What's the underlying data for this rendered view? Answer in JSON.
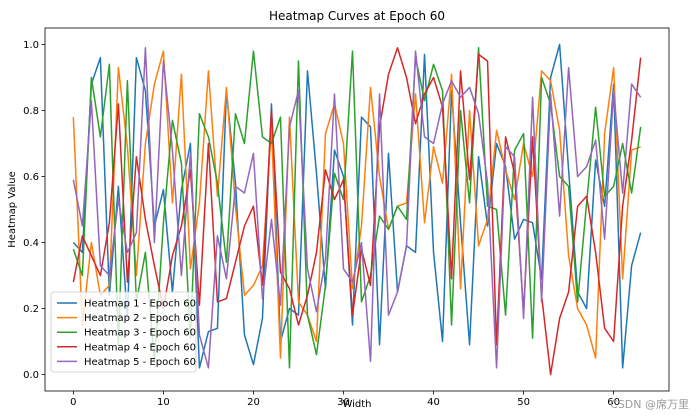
{
  "chart_data": {
    "type": "line",
    "title": "Heatmap Curves at Epoch 60",
    "xlabel": "Width",
    "ylabel": "Heatmap Value",
    "xlim": [
      -3.15,
      66.15
    ],
    "ylim": [
      -0.05,
      1.05
    ],
    "x_ticks": [
      0,
      10,
      20,
      30,
      40,
      50,
      60
    ],
    "y_ticks": [
      0.0,
      0.2,
      0.4,
      0.6,
      0.8,
      1.0
    ],
    "x_tick_labels": [
      "0",
      "10",
      "20",
      "30",
      "40",
      "50",
      "60"
    ],
    "y_tick_labels": [
      "0.0",
      "0.2",
      "0.4",
      "0.6",
      "0.8",
      "1.0"
    ],
    "grid": false,
    "legend_position": "lower-left",
    "x": [
      0,
      1,
      2,
      3,
      4,
      5,
      6,
      7,
      8,
      9,
      10,
      11,
      12,
      13,
      14,
      15,
      16,
      17,
      18,
      19,
      20,
      21,
      22,
      23,
      24,
      25,
      26,
      27,
      28,
      29,
      30,
      31,
      32,
      33,
      34,
      35,
      36,
      37,
      38,
      39,
      40,
      41,
      42,
      43,
      44,
      45,
      46,
      47,
      48,
      49,
      50,
      51,
      52,
      53,
      54,
      55,
      56,
      57,
      58,
      59,
      60,
      61,
      62,
      63
    ],
    "series": [
      {
        "name": "Heatmap 1 - Epoch 60",
        "color": "#1f77b4",
        "values": [
          0.4,
          0.37,
          0.88,
          0.96,
          0.24,
          0.57,
          0.17,
          0.96,
          0.86,
          0.45,
          0.56,
          0.25,
          0.56,
          0.7,
          0.02,
          0.13,
          0.14,
          0.86,
          0.58,
          0.12,
          0.03,
          0.17,
          0.82,
          0.1,
          0.2,
          0.18,
          0.92,
          0.61,
          0.26,
          0.68,
          0.6,
          0.15,
          0.78,
          0.75,
          0.09,
          0.67,
          0.25,
          0.39,
          0.37,
          0.97,
          0.37,
          0.1,
          0.86,
          0.46,
          0.09,
          0.66,
          0.45,
          0.7,
          0.63,
          0.41,
          0.47,
          0.46,
          0.29,
          0.9,
          1.0,
          0.62,
          0.25,
          0.2,
          0.65,
          0.51,
          0.88,
          0.02,
          0.33,
          0.43
        ]
      },
      {
        "name": "Heatmap 2 - Epoch 60",
        "color": "#ff7f0e",
        "values": [
          0.78,
          0.15,
          0.4,
          0.24,
          0.27,
          0.93,
          0.69,
          0.3,
          0.7,
          0.88,
          0.98,
          0.52,
          0.91,
          0.32,
          0.52,
          0.92,
          0.54,
          0.87,
          0.51,
          0.24,
          0.27,
          0.33,
          0.75,
          0.05,
          0.78,
          0.22,
          0.18,
          0.1,
          0.73,
          0.82,
          0.7,
          0.26,
          0.45,
          0.87,
          0.6,
          0.44,
          0.51,
          0.52,
          0.85,
          0.46,
          0.69,
          0.58,
          0.91,
          0.26,
          0.8,
          0.39,
          0.47,
          0.74,
          0.62,
          0.53,
          0.7,
          0.6,
          0.92,
          0.89,
          0.74,
          0.36,
          0.2,
          0.15,
          0.05,
          0.73,
          0.93,
          0.29,
          0.68,
          0.69
        ]
      },
      {
        "name": "Heatmap 3 - Epoch 60",
        "color": "#2ca02c",
        "values": [
          0.38,
          0.3,
          0.9,
          0.72,
          0.94,
          0.09,
          0.89,
          0.22,
          0.37,
          0.04,
          0.46,
          0.77,
          0.64,
          0.11,
          0.79,
          0.72,
          0.58,
          0.34,
          0.79,
          0.7,
          0.98,
          0.72,
          0.7,
          0.78,
          0.02,
          0.95,
          0.18,
          0.06,
          0.27,
          0.61,
          0.53,
          0.98,
          0.22,
          0.3,
          0.48,
          0.44,
          0.51,
          0.47,
          0.96,
          0.83,
          0.94,
          0.86,
          0.15,
          0.8,
          0.52,
          0.99,
          0.51,
          0.5,
          0.18,
          0.68,
          0.73,
          0.11,
          0.9,
          0.82,
          0.6,
          0.57,
          0.22,
          0.52,
          0.81,
          0.54,
          0.57,
          0.7,
          0.55,
          0.75
        ]
      },
      {
        "name": "Heatmap 4 - Epoch 60",
        "color": "#d62728",
        "values": [
          0.28,
          0.42,
          0.36,
          0.3,
          0.46,
          0.82,
          0.28,
          0.66,
          0.47,
          0.33,
          0.2,
          0.36,
          0.45,
          0.62,
          0.21,
          0.7,
          0.22,
          0.23,
          0.34,
          0.45,
          0.51,
          0.27,
          0.8,
          0.31,
          0.26,
          0.15,
          0.24,
          0.37,
          0.62,
          0.53,
          0.59,
          0.18,
          0.38,
          0.27,
          0.75,
          0.91,
          0.99,
          0.9,
          0.76,
          0.85,
          0.9,
          0.81,
          0.29,
          0.92,
          0.59,
          0.97,
          0.95,
          0.09,
          0.72,
          0.61,
          0.19,
          0.72,
          0.24,
          0.0,
          0.17,
          0.25,
          0.51,
          0.54,
          0.37,
          0.14,
          0.1,
          0.51,
          0.71,
          0.96
        ]
      },
      {
        "name": "Heatmap 5 - Epoch 60",
        "color": "#9467bd",
        "values": [
          0.59,
          0.45,
          0.83,
          0.33,
          0.3,
          0.53,
          0.37,
          0.43,
          0.99,
          0.4,
          0.95,
          0.68,
          0.3,
          0.67,
          0.12,
          0.02,
          0.42,
          0.29,
          0.57,
          0.55,
          0.67,
          0.23,
          0.47,
          0.21,
          0.75,
          0.86,
          0.32,
          0.19,
          0.35,
          0.85,
          0.32,
          0.28,
          0.4,
          0.04,
          0.85,
          0.18,
          0.25,
          0.39,
          0.98,
          0.72,
          0.7,
          0.82,
          0.89,
          0.84,
          0.87,
          0.79,
          0.58,
          0.02,
          0.69,
          0.66,
          0.17,
          0.84,
          0.22,
          0.85,
          0.48,
          0.93,
          0.6,
          0.63,
          0.71,
          0.41,
          0.86,
          0.55,
          0.88,
          0.84
        ]
      }
    ]
  },
  "watermark": "CSDN @席万里"
}
